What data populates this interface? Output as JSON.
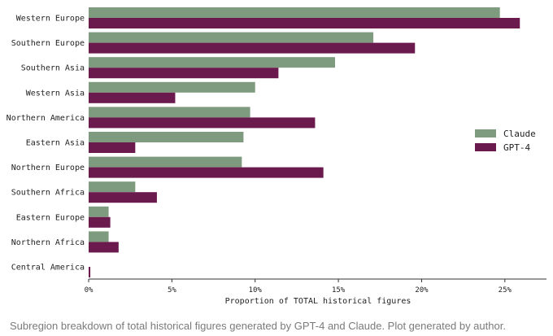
{
  "chart_data": {
    "type": "bar",
    "orientation": "horizontal",
    "categories": [
      "Western Europe",
      "Southern Europe",
      "Southern Asia",
      "Western Asia",
      "Northern America",
      "Eastern Asia",
      "Northern Europe",
      "Southern Africa",
      "Eastern Europe",
      "Northern Africa",
      "Central America"
    ],
    "series": [
      {
        "name": "Claude",
        "color": "#7f9b7f",
        "values": [
          24.7,
          17.1,
          14.8,
          10.0,
          9.7,
          9.3,
          9.2,
          2.8,
          1.2,
          1.2,
          0.0
        ]
      },
      {
        "name": "GPT-4",
        "color": "#6a1a4d",
        "values": [
          25.9,
          19.6,
          11.4,
          5.2,
          13.6,
          2.8,
          14.1,
          4.1,
          1.3,
          1.8,
          0.1
        ]
      }
    ],
    "xlabel": "Proportion of TOTAL historical figures",
    "xlim": [
      0,
      27.5
    ],
    "xticks": [
      0,
      5,
      10,
      15,
      20,
      25
    ],
    "tick_format": "{v}%",
    "legend": "right",
    "grid": false
  },
  "caption": "Subregion breakdown of total historical figures generated by GPT-4 and Claude. Plot generated by author."
}
